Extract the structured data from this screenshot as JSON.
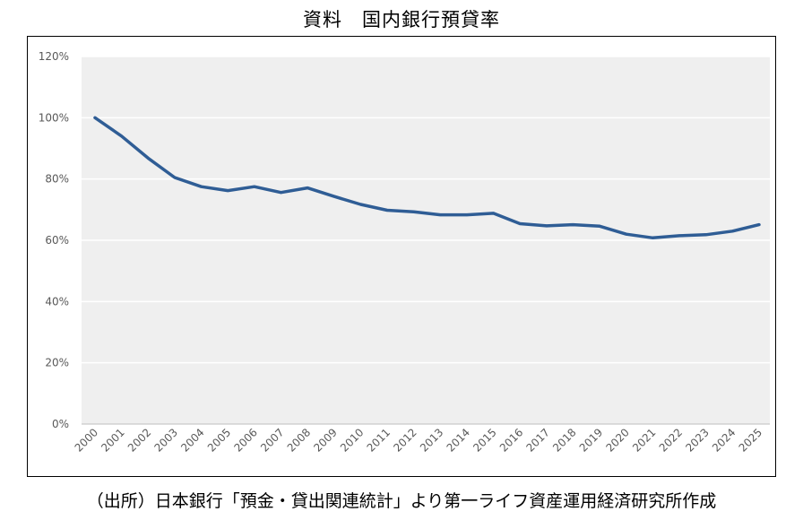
{
  "title": "資料　国内銀行預貸率",
  "source": "（出所）日本銀行「預金・貸出関連統計」より第一ライフ資産運用経済研究所作成",
  "chart_data": {
    "type": "line",
    "title": "資料　国内銀行預貸率",
    "xlabel": "",
    "ylabel": "",
    "x": [
      "2000",
      "2001",
      "2002",
      "2003",
      "2004",
      "2005",
      "2006",
      "2007",
      "2008",
      "2009",
      "2010",
      "2011",
      "2012",
      "2013",
      "2014",
      "2015",
      "2016",
      "2017",
      "2018",
      "2019",
      "2020",
      "2021",
      "2022",
      "2023",
      "2024",
      "2025"
    ],
    "series": [
      {
        "values": [
          100,
          94,
          86.8,
          80.5,
          77.5,
          76.2,
          77.5,
          75.6,
          77.1,
          74.3,
          71.7,
          69.8,
          69.3,
          68.3,
          68.3,
          68.8,
          65.4,
          64.7,
          65.1,
          64.6,
          62,
          60.8,
          61.5,
          61.8,
          63,
          65.1
        ]
      }
    ],
    "ylim": [
      0,
      120
    ],
    "yticks": [
      0,
      20,
      40,
      60,
      80,
      100,
      120
    ],
    "ytick_labels": [
      "0%",
      "20%",
      "40%",
      "60%",
      "80%",
      "100%",
      "120%"
    ],
    "grid": true,
    "legend": "none",
    "colors": {
      "line": "#2f5d95",
      "plot_bg": "#efefef",
      "grid": "#ffffff",
      "axis": "#bfbfbf",
      "tick_text": "#595959"
    }
  }
}
